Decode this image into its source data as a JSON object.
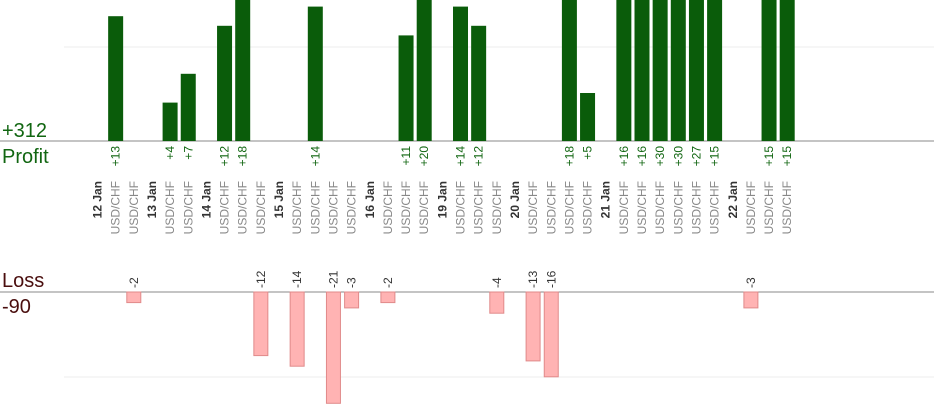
{
  "chart_data": {
    "type": "bar",
    "symbol": "USD/CHF",
    "profit_total": "+312",
    "profit_label": "Profit",
    "loss_label": "Loss",
    "loss_total": "-90",
    "columns": [
      {
        "kind": "date",
        "label": "12 Jan"
      },
      {
        "kind": "trade",
        "value": 13
      },
      {
        "kind": "trade",
        "value": -2
      },
      {
        "kind": "date",
        "label": "13 Jan"
      },
      {
        "kind": "trade",
        "value": 4
      },
      {
        "kind": "trade",
        "value": 7
      },
      {
        "kind": "date",
        "label": "14 Jan"
      },
      {
        "kind": "trade",
        "value": 12
      },
      {
        "kind": "trade",
        "value": 18
      },
      {
        "kind": "trade",
        "value": -12
      },
      {
        "kind": "date",
        "label": "15 Jan"
      },
      {
        "kind": "trade",
        "value": -14
      },
      {
        "kind": "trade",
        "value": 14
      },
      {
        "kind": "trade",
        "value": -21
      },
      {
        "kind": "trade",
        "value": -3
      },
      {
        "kind": "date",
        "label": "16 Jan"
      },
      {
        "kind": "trade",
        "value": -2
      },
      {
        "kind": "trade",
        "value": 11
      },
      {
        "kind": "trade",
        "value": 20
      },
      {
        "kind": "date",
        "label": "19 Jan"
      },
      {
        "kind": "trade",
        "value": 14
      },
      {
        "kind": "trade",
        "value": 12
      },
      {
        "kind": "trade",
        "value": -4
      },
      {
        "kind": "date",
        "label": "20 Jan"
      },
      {
        "kind": "trade",
        "value": -13
      },
      {
        "kind": "trade",
        "value": -16
      },
      {
        "kind": "trade",
        "value": 18
      },
      {
        "kind": "trade",
        "value": 5
      },
      {
        "kind": "date",
        "label": "21 Jan"
      },
      {
        "kind": "trade",
        "value": 16
      },
      {
        "kind": "trade",
        "value": 16
      },
      {
        "kind": "trade",
        "value": 30
      },
      {
        "kind": "trade",
        "value": 30
      },
      {
        "kind": "trade",
        "value": 27
      },
      {
        "kind": "trade",
        "value": 15
      },
      {
        "kind": "date",
        "label": "22 Jan"
      },
      {
        "kind": "trade",
        "value": -3
      },
      {
        "kind": "trade",
        "value": 15
      },
      {
        "kind": "trade",
        "value": 15
      }
    ],
    "colors": {
      "profit": "#0a5c0a",
      "profit_text": "#116611",
      "loss_fill": "#ffb3b3",
      "loss_stroke": "#e08a8a",
      "axis": "#888888",
      "grid": "#eeeeee",
      "loss_label": "#4a0e0e"
    }
  }
}
